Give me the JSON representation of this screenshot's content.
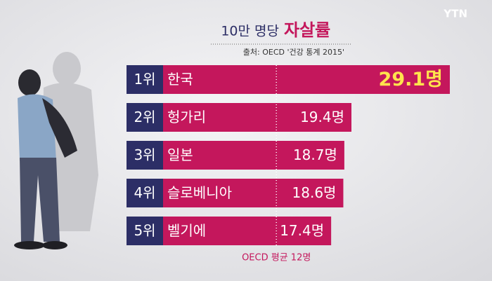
{
  "chart_data": {
    "type": "bar",
    "logo": "YTN",
    "title": "10만 명당",
    "title_highlight": "자살률",
    "source": "출처: OECD '건강 통계 2015'",
    "ranks": [
      "1위",
      "2위",
      "3위",
      "4위",
      "5위"
    ],
    "categories": [
      "한국",
      "헝가리",
      "일본",
      "슬로베니아",
      "벨기에"
    ],
    "values": [
      29.1,
      19.4,
      18.7,
      18.6,
      17.4
    ],
    "value_labels": [
      "29.1명",
      "19.4명",
      "18.7명",
      "18.6명",
      "17.4명"
    ],
    "color": "#c4175c",
    "rank_color": "#2c2e66",
    "value_label_colors": [
      "#ffe34d",
      "#ffffff",
      "#ffffff",
      "#ffffff",
      "#ffffff"
    ],
    "xlim": [
      0,
      30
    ],
    "average": {
      "value": 12,
      "label": "OECD 평균 12명"
    }
  }
}
